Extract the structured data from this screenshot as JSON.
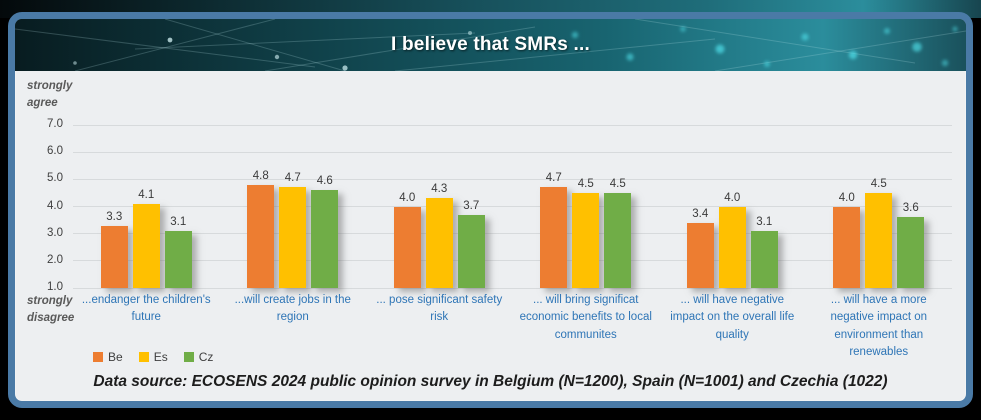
{
  "title": "I believe that SMRs ...",
  "axis": {
    "top_label_line1": "strongly",
    "top_label_line2": "agree",
    "bottom_label_line1": "strongly",
    "bottom_label_line2": "disagree"
  },
  "legend": [
    {
      "label": "Be",
      "color": "#ED7D31"
    },
    {
      "label": "Es",
      "color": "#FFC000"
    },
    {
      "label": "Cz",
      "color": "#70AD47"
    }
  ],
  "source_note": "Data source: ECOSENS 2024 public opinion survey in Belgium (N=1200), Spain (N=1001) and Czechia (1022)",
  "colors": {
    "frame_border": "#4a7aa6",
    "chart_background": "#edeff1",
    "category_label": "#2e75b6",
    "banner_teal": "#1f6d7a"
  },
  "chart_data": {
    "type": "bar",
    "title": "I believe that SMRs ...",
    "categories": [
      "...endanger the children's future",
      "...will create jobs in the region",
      "... pose significant safety risk",
      "... will bring significat economic benefits to local communites",
      "... will have negative impact on the overall life quality",
      "... will have a more negative impact on environment than renewables"
    ],
    "series": [
      {
        "name": "Be",
        "color": "#ED7D31",
        "values": [
          3.3,
          4.8,
          4.0,
          4.7,
          3.4,
          4.0
        ]
      },
      {
        "name": "Es",
        "color": "#FFC000",
        "values": [
          4.1,
          4.7,
          4.3,
          4.5,
          4.0,
          4.5
        ]
      },
      {
        "name": "Cz",
        "color": "#70AD47",
        "values": [
          3.1,
          4.6,
          3.7,
          4.5,
          3.1,
          3.6
        ]
      }
    ],
    "ylabel_top": "strongly agree",
    "ylabel_bottom": "strongly disagree",
    "ylim": [
      1.0,
      7.0
    ],
    "ytick_step": 1.0,
    "grid": true,
    "legend_position": "bottom-left"
  }
}
